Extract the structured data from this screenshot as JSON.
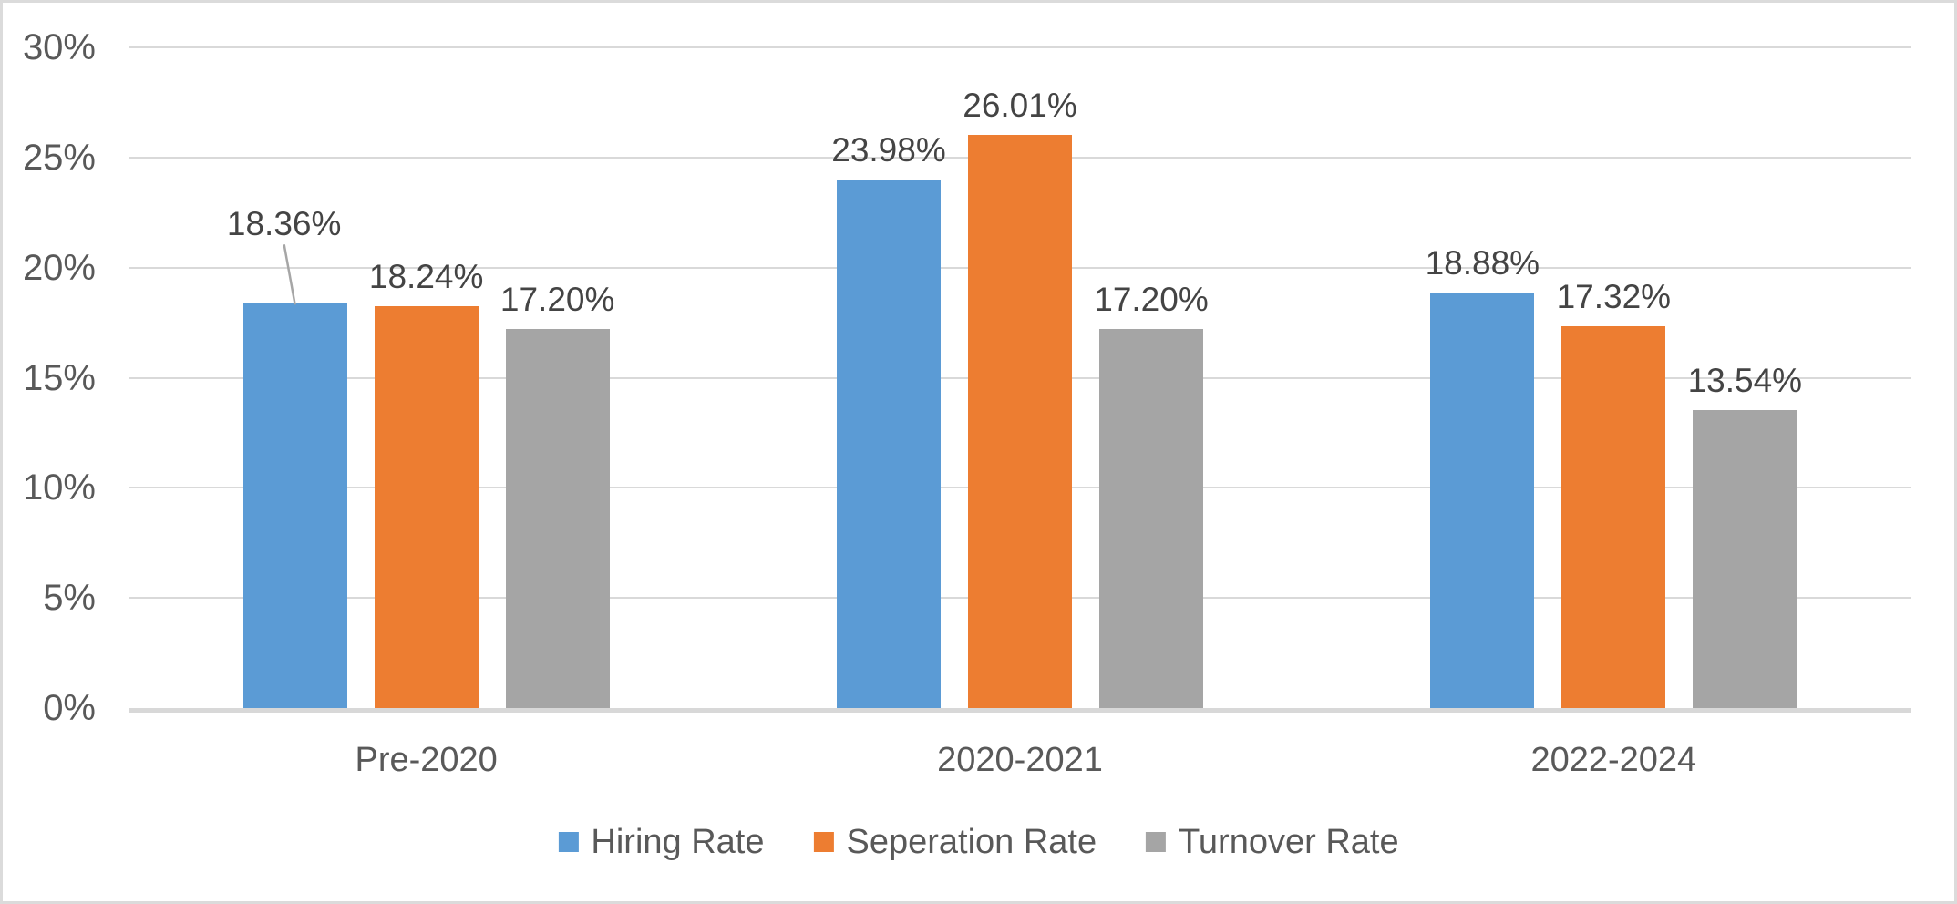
{
  "chart_data": {
    "type": "bar",
    "title": "",
    "categories": [
      "Pre-2020",
      "2020-2021",
      "2022-2024"
    ],
    "series": [
      {
        "name": "Hiring Rate",
        "color": "#5B9BD5",
        "values": [
          18.36,
          23.98,
          18.88
        ],
        "labels": [
          "18.36%",
          "23.98%",
          "18.88%"
        ]
      },
      {
        "name": "Seperation Rate",
        "color": "#ED7D31",
        "values": [
          18.24,
          26.01,
          17.32
        ],
        "labels": [
          "18.24%",
          "26.01%",
          "17.32%"
        ]
      },
      {
        "name": "Turnover Rate",
        "color": "#A5A5A5",
        "values": [
          17.2,
          17.2,
          13.54
        ],
        "labels": [
          "17.20%",
          "17.20%",
          "13.54%"
        ]
      }
    ],
    "y_axis": {
      "min": 0,
      "max": 30,
      "step": 5,
      "tick_labels": [
        "0%",
        "5%",
        "10%",
        "15%",
        "20%",
        "25%",
        "30%"
      ]
    },
    "grid": true,
    "legend_position": "bottom",
    "data_label_format": "percent-2dp",
    "moved_label": {
      "series": 0,
      "category": 0,
      "dx": -12,
      "dy": -55,
      "has_leader_line": true
    }
  },
  "colors": {
    "gridline": "#D9D9D9",
    "axis_line": "#D8D8D8",
    "axis_text": "#595959",
    "data_label_text": "#444444",
    "leader_line": "#A6A6A6",
    "border": "#DBDBDB",
    "background": "#FFFFFF"
  }
}
